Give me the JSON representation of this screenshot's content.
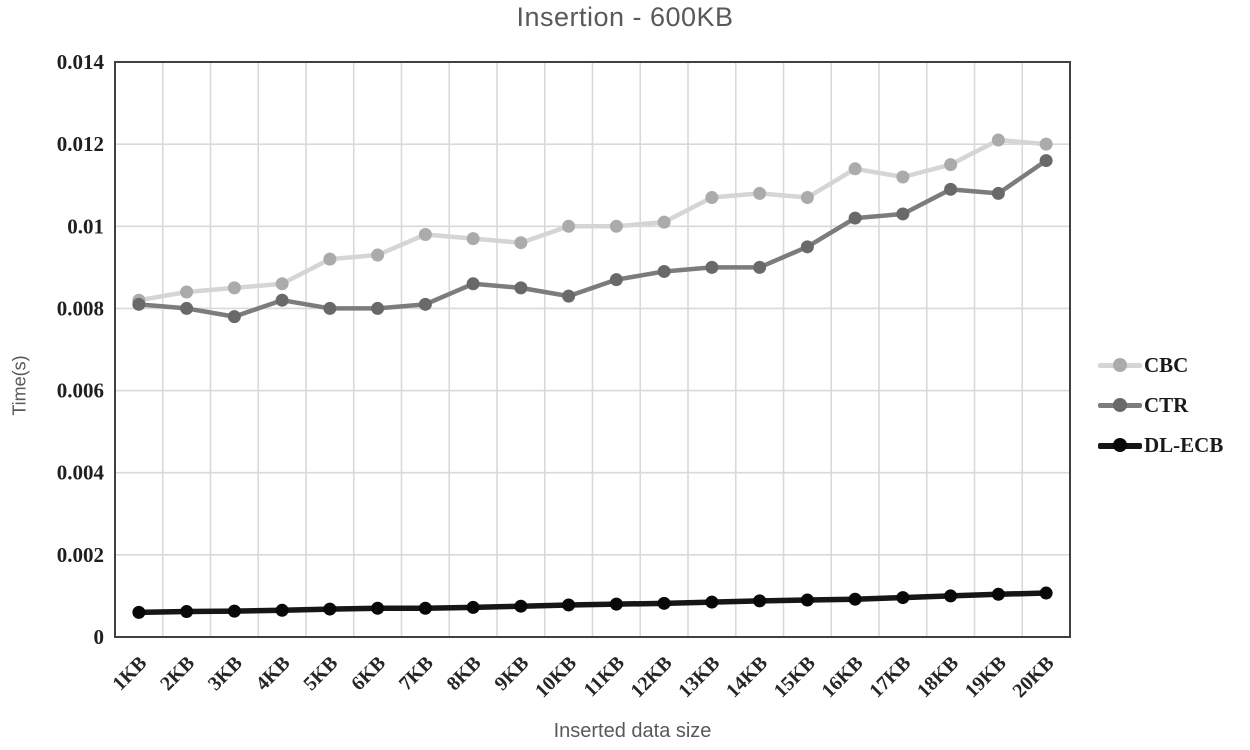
{
  "chart_data": {
    "type": "line",
    "title": "Insertion - 600KB",
    "xlabel": "Inserted data size",
    "ylabel": "Time(s)",
    "ylim": [
      0,
      0.014
    ],
    "ytick_labels": [
      "0",
      "0.002",
      "0.004",
      "0.006",
      "0.008",
      "0.01",
      "0.012",
      "0.014"
    ],
    "ytick_values": [
      0,
      0.002,
      0.004,
      0.006,
      0.008,
      0.01,
      0.012,
      0.014
    ],
    "grid": true,
    "legend_position": "right",
    "categories": [
      "1KB",
      "2KB",
      "3KB",
      "4KB",
      "5KB",
      "6KB",
      "7KB",
      "8KB",
      "9KB",
      "10KB",
      "11KB",
      "12KB",
      "13KB",
      "14KB",
      "15KB",
      "16KB",
      "17KB",
      "18KB",
      "19KB",
      "20KB"
    ],
    "series": [
      {
        "name": "CBC",
        "line_color": "#d6d4d4",
        "marker_color": "#acaaaa",
        "line_width": 4.5,
        "values": [
          0.0082,
          0.0084,
          0.0085,
          0.0086,
          0.0092,
          0.0093,
          0.0098,
          0.0097,
          0.0096,
          0.01,
          0.01,
          0.0101,
          0.0107,
          0.0108,
          0.0107,
          0.0114,
          0.0112,
          0.0115,
          0.0121,
          0.012
        ]
      },
      {
        "name": "CTR",
        "line_color": "#7c7c7c",
        "marker_color": "#696969",
        "line_width": 4.5,
        "values": [
          0.0081,
          0.008,
          0.0078,
          0.0082,
          0.008,
          0.008,
          0.0081,
          0.0086,
          0.0085,
          0.0083,
          0.0087,
          0.0089,
          0.009,
          0.009,
          0.0095,
          0.0102,
          0.0103,
          0.0109,
          0.0108,
          0.0116
        ]
      },
      {
        "name": "DL-ECB",
        "line_color": "#161616",
        "marker_color": "#080808",
        "line_width": 5.5,
        "values": [
          0.0006,
          0.00062,
          0.00063,
          0.00065,
          0.00068,
          0.0007,
          0.0007,
          0.00072,
          0.00075,
          0.00078,
          0.0008,
          0.00082,
          0.00085,
          0.00088,
          0.0009,
          0.00092,
          0.00096,
          0.001,
          0.00104,
          0.00107
        ]
      }
    ],
    "colors": {
      "gridline": "#d9d9d9",
      "frame": "#404040",
      "title_text": "#595959",
      "tick_text": "#1f1f1f"
    }
  }
}
